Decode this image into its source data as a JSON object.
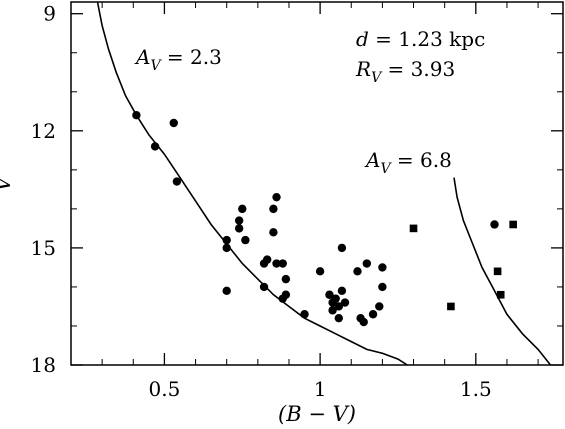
{
  "chart_data": {
    "type": "scatter",
    "xlabel": "(B − V)",
    "ylabel": "V",
    "xlim": [
      0.2,
      1.78
    ],
    "ylim": [
      18,
      8.7
    ],
    "y_inverted": true,
    "x_ticks": [
      0.5,
      1,
      1.5
    ],
    "x_tick_labels": [
      "0.5",
      "1",
      "1.5"
    ],
    "y_ticks": [
      9,
      12,
      15,
      18
    ],
    "y_tick_labels": [
      "9",
      "12",
      "15",
      "18"
    ],
    "annotations": [
      {
        "id": "av1",
        "var": "A",
        "sub": "V",
        "text": " = 2.3"
      },
      {
        "id": "dist",
        "var": "d",
        "sub": "",
        "text": " = 1.23 kpc"
      },
      {
        "id": "rv",
        "var": "R",
        "sub": "V",
        "text": " = 3.93"
      },
      {
        "id": "av2",
        "var": "A",
        "sub": "V",
        "text": " = 6.8"
      }
    ],
    "series": [
      {
        "marker": "circle",
        "points": [
          [
            0.41,
            11.6
          ],
          [
            0.47,
            12.4
          ],
          [
            0.53,
            11.8
          ],
          [
            0.54,
            13.3
          ],
          [
            0.7,
            14.8
          ],
          [
            0.7,
            15.0
          ],
          [
            0.7,
            16.1
          ],
          [
            0.74,
            14.5
          ],
          [
            0.74,
            14.3
          ],
          [
            0.75,
            14.0
          ],
          [
            0.76,
            14.8
          ],
          [
            0.82,
            15.4
          ],
          [
            0.83,
            15.3
          ],
          [
            0.82,
            16.0
          ],
          [
            0.85,
            14.0
          ],
          [
            0.85,
            14.6
          ],
          [
            0.86,
            13.7
          ],
          [
            0.86,
            15.4
          ],
          [
            0.88,
            15.4
          ],
          [
            0.89,
            15.8
          ],
          [
            0.88,
            16.3
          ],
          [
            0.89,
            16.2
          ],
          [
            0.95,
            16.7
          ],
          [
            1.0,
            15.6
          ],
          [
            1.03,
            16.2
          ],
          [
            1.04,
            16.4
          ],
          [
            1.04,
            16.6
          ],
          [
            1.05,
            16.3
          ],
          [
            1.06,
            16.8
          ],
          [
            1.06,
            16.5
          ],
          [
            1.07,
            15.0
          ],
          [
            1.07,
            16.1
          ],
          [
            1.08,
            16.4
          ],
          [
            1.12,
            15.6
          ],
          [
            1.13,
            16.8
          ],
          [
            1.14,
            16.9
          ],
          [
            1.15,
            15.4
          ],
          [
            1.17,
            16.7
          ],
          [
            1.19,
            16.5
          ],
          [
            1.2,
            15.5
          ],
          [
            1.2,
            16.0
          ],
          [
            1.56,
            14.4
          ]
        ]
      },
      {
        "marker": "square",
        "points": [
          [
            1.3,
            14.5
          ],
          [
            1.42,
            16.5
          ],
          [
            1.57,
            15.6
          ],
          [
            1.58,
            16.2
          ],
          [
            1.62,
            14.4
          ]
        ]
      }
    ],
    "curves": [
      {
        "name": "",
        "points": [
          [
            0.285,
            8.7
          ],
          [
            0.3,
            9.3
          ],
          [
            0.32,
            9.9
          ],
          [
            0.345,
            10.5
          ],
          [
            0.375,
            11.1
          ],
          [
            0.41,
            11.6
          ],
          [
            0.45,
            12.1
          ],
          [
            0.5,
            12.6
          ],
          [
            0.55,
            13.2
          ],
          [
            0.6,
            13.8
          ],
          [
            0.65,
            14.4
          ],
          [
            0.7,
            14.9
          ],
          [
            0.75,
            15.4
          ],
          [
            0.8,
            15.8
          ],
          [
            0.85,
            16.2
          ],
          [
            0.9,
            16.5
          ],
          [
            0.95,
            16.8
          ],
          [
            1.0,
            17.0
          ],
          [
            1.05,
            17.2
          ],
          [
            1.1,
            17.4
          ],
          [
            1.15,
            17.6
          ],
          [
            1.2,
            17.7
          ],
          [
            1.25,
            17.85
          ],
          [
            1.28,
            18.0
          ]
        ]
      },
      {
        "name": "",
        "points": [
          [
            1.43,
            13.2
          ],
          [
            1.44,
            13.7
          ],
          [
            1.46,
            14.3
          ],
          [
            1.49,
            14.9
          ],
          [
            1.52,
            15.5
          ],
          [
            1.56,
            16.1
          ],
          [
            1.6,
            16.7
          ],
          [
            1.65,
            17.2
          ],
          [
            1.7,
            17.6
          ],
          [
            1.74,
            18.0
          ]
        ]
      }
    ]
  }
}
